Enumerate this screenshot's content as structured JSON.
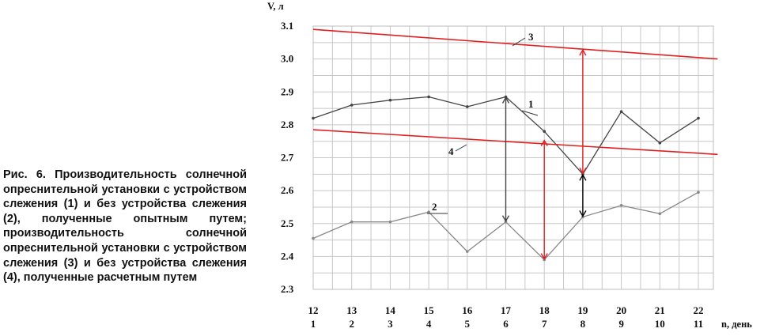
{
  "caption": "Рис. 6. Производительность солнечной опреснительной установки с устройством слежения (1) и без устройства слежения (2), полученные опытным путем; производительность солнечной опреснительной установки с устройством слежения (3) и без устройства слежения (4), полученные расчетным путем",
  "chart_data": {
    "type": "line",
    "ylabel": "V, л",
    "xlabel": "n, день",
    "ylim": [
      2.3,
      3.1
    ],
    "yticks": [
      "2.3",
      "2.4",
      "2.5",
      "2.6",
      "2.7",
      "2.8",
      "2.9",
      "3.0",
      "3.1"
    ],
    "xlim": [
      12,
      22.5
    ],
    "x_ticks_top": [
      "12",
      "13",
      "14",
      "15",
      "16",
      "17",
      "18",
      "19",
      "20",
      "21",
      "22"
    ],
    "x_ticks_bottom": [
      "1",
      "2",
      "3",
      "4",
      "5",
      "6",
      "7",
      "8",
      "9",
      "10",
      "11"
    ],
    "grid": true,
    "series": [
      {
        "name": "1",
        "color": "#444444",
        "x": [
          12,
          13,
          14,
          15,
          16,
          17,
          18,
          19,
          20,
          21,
          22
        ],
        "y": [
          2.82,
          2.86,
          2.875,
          2.885,
          2.855,
          2.885,
          2.78,
          2.65,
          2.84,
          2.745,
          2.82
        ]
      },
      {
        "name": "2",
        "color": "#888888",
        "x": [
          12,
          13,
          14,
          15,
          16,
          17,
          18,
          19,
          20,
          21,
          22
        ],
        "y": [
          2.455,
          2.505,
          2.505,
          2.535,
          2.415,
          2.505,
          2.39,
          2.52,
          2.555,
          2.53,
          2.595
        ]
      },
      {
        "name": "3",
        "color": "#e02020",
        "x": [
          12,
          22.5
        ],
        "y": [
          3.09,
          3.0
        ]
      },
      {
        "name": "4",
        "color": "#e02020",
        "x": [
          12,
          22.5
        ],
        "y": [
          2.785,
          2.71
        ]
      }
    ],
    "annotations": [
      {
        "type": "double-arrow",
        "color": "#e02020",
        "x": 19,
        "y_from": 2.65,
        "y_to": 3.03
      },
      {
        "type": "double-arrow",
        "color": "#e02020",
        "x": 18,
        "y_from": 2.39,
        "y_to": 2.755
      },
      {
        "type": "double-arrow",
        "color": "#444444",
        "x": 17,
        "y_from": 2.505,
        "y_to": 2.885
      },
      {
        "type": "double-arrow",
        "color": "#000000",
        "x": 19,
        "y_from": 2.52,
        "y_to": 2.65
      }
    ]
  }
}
